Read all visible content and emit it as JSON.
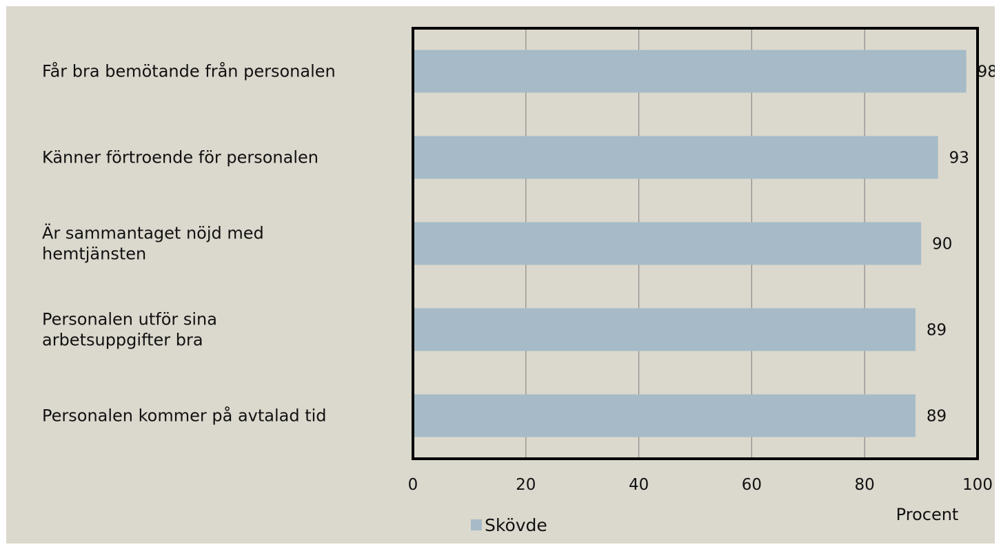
{
  "chart_data": {
    "type": "bar",
    "orientation": "horizontal",
    "categories": [
      "Får bra bemötande från personalen",
      "Känner förtroende för personalen",
      "Är sammantaget nöjd med hemtjänsten",
      "Personalen utför sina arbetsuppgifter bra",
      "Personalen kommer på avtalad tid"
    ],
    "category_lines": [
      [
        "Får bra bemötande från personalen"
      ],
      [
        "Känner förtroende för personalen"
      ],
      [
        "Är sammantaget nöjd med",
        "hemtjänsten"
      ],
      [
        "Personalen utför sina",
        "arbetsuppgifter bra"
      ],
      [
        "Personalen kommer på avtalad tid"
      ]
    ],
    "series": [
      {
        "name": "Skövde",
        "values": [
          98,
          93,
          90,
          89,
          89
        ],
        "color": "#a6bbc7"
      }
    ],
    "data_labels": [
      "98",
      "93",
      "90",
      "89",
      "89"
    ],
    "xlabel": "Procent",
    "ylabel": "",
    "xlim": [
      0,
      100
    ],
    "xticks": [
      "0",
      "20",
      "40",
      "60",
      "80",
      "100"
    ],
    "grid": "vertical",
    "legend": "bottom-left"
  },
  "colors": {
    "background": "#dbd8cd",
    "plot_background": "#dbd8cd",
    "bar": "#a6bbc7",
    "grid": "#8a8a8a",
    "frame": "#000000"
  }
}
